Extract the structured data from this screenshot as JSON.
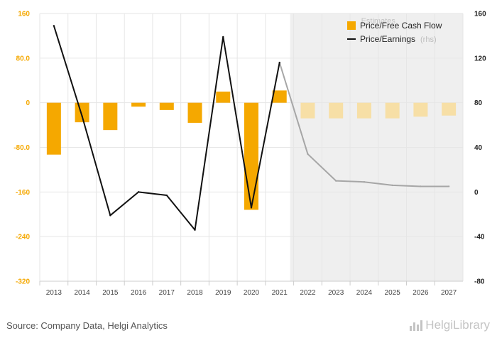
{
  "chart_data": {
    "type": "bar+line",
    "categories": [
      "2013",
      "2014",
      "2015",
      "2016",
      "2017",
      "2018",
      "2019",
      "2020",
      "2021",
      "2022",
      "2023",
      "2024",
      "2025",
      "2026",
      "2027"
    ],
    "estimates_start_index": 9,
    "estimates_label": "Estimates",
    "series": [
      {
        "name": "Price/Free Cash Flow",
        "type": "bar",
        "axis": "left",
        "color": "#f5a800",
        "estimate_color": "#f7dfa6",
        "values": [
          -93,
          -35,
          -49,
          -7,
          -13,
          -36,
          20,
          -192,
          22,
          -28,
          -28,
          -28,
          -28,
          -25,
          -23
        ]
      },
      {
        "name": "Price/Earnings",
        "rhs_suffix": "(rhs)",
        "type": "line",
        "axis": "right",
        "color": "#111111",
        "estimate_color": "#a6a6a6",
        "values": [
          149,
          68,
          -21,
          0,
          -3,
          -34,
          139,
          -14,
          116,
          34,
          10,
          9,
          6,
          5,
          5
        ]
      }
    ],
    "left_axis": {
      "min": -320,
      "max": 160,
      "ticks": [
        160,
        80,
        0,
        -80,
        -160,
        -240,
        -320
      ],
      "tick_labels": [
        "160",
        "80.0",
        "0",
        "-80.0",
        "-160",
        "-240",
        "-320"
      ]
    },
    "right_axis": {
      "min": -80,
      "max": 160,
      "ticks": [
        160,
        120,
        80,
        40,
        0,
        -40,
        -80
      ],
      "tick_labels": [
        "160",
        "120",
        "80",
        "40",
        "0",
        "-40",
        "-80"
      ]
    },
    "legend_position": "top-right"
  },
  "footer": {
    "source": "Source: Company Data, Helgi Analytics",
    "brand": "HelgiLibrary"
  }
}
